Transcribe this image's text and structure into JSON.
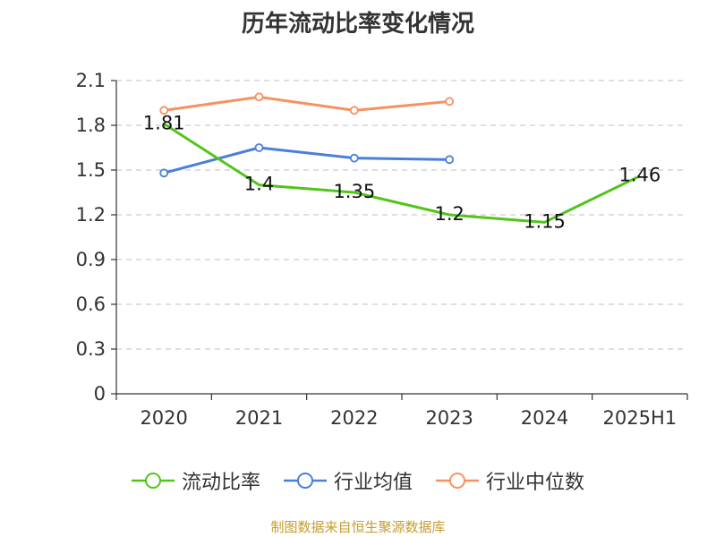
{
  "chart_data": {
    "type": "line",
    "title": "历年流动比率变化情况",
    "categories": [
      "2020",
      "2021",
      "2022",
      "2023",
      "2024",
      "2025H1"
    ],
    "ylim": [
      0,
      2.1
    ],
    "yticks": [
      "0",
      "0.3",
      "0.6",
      "0.9",
      "1.2",
      "1.5",
      "1.8",
      "2.1"
    ],
    "grid": true,
    "legend_position": "bottom",
    "series": [
      {
        "name": "流动比率",
        "color": "#52c41a",
        "values": [
          1.81,
          1.4,
          1.35,
          1.2,
          1.15,
          1.46
        ],
        "labels": [
          "1.81",
          "1.4",
          "1.35",
          "1.2",
          "1.15",
          "1.46"
        ]
      },
      {
        "name": "行业均值",
        "color": "#4a7fdb",
        "values": [
          1.48,
          1.65,
          1.58,
          1.57,
          null,
          null
        ]
      },
      {
        "name": "行业中位数",
        "color": "#f59262",
        "values": [
          1.9,
          1.99,
          1.9,
          1.96,
          null,
          null
        ]
      }
    ]
  },
  "footer": {
    "source": "制图数据来自恒生聚源数据库"
  }
}
